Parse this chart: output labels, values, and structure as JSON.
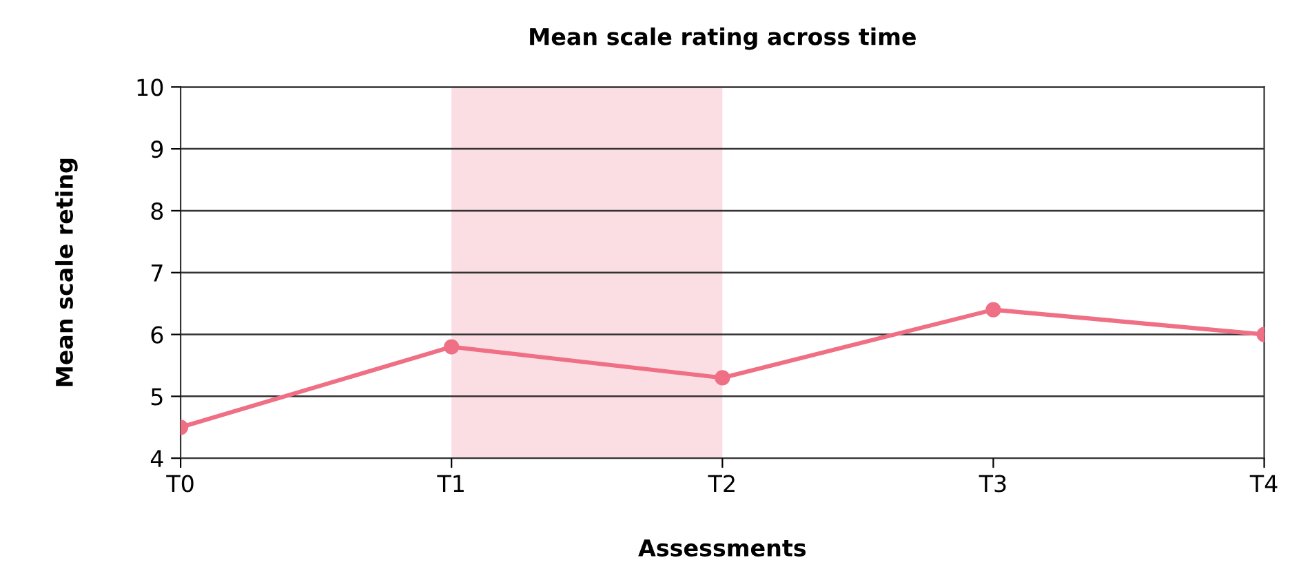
{
  "chart_data": {
    "type": "line",
    "title": "Mean scale rating across time",
    "xlabel": "Assessments",
    "ylabel": "Mean scale reting",
    "categories": [
      "T0",
      "T1",
      "T2",
      "T3",
      "T4"
    ],
    "series": [
      {
        "color": "#ef6f85",
        "values": [
          4.5,
          5.8,
          5.3,
          6.4,
          6.0
        ]
      }
    ],
    "ylim": [
      4,
      10
    ],
    "yticks": [
      4,
      5,
      6,
      7,
      8,
      9,
      10
    ],
    "grid": "y",
    "marker": "circle",
    "line_style": "solid",
    "bands": [
      {
        "axis": "x",
        "from": "T1",
        "to": "T2",
        "color": "#fbdde4"
      }
    ]
  }
}
